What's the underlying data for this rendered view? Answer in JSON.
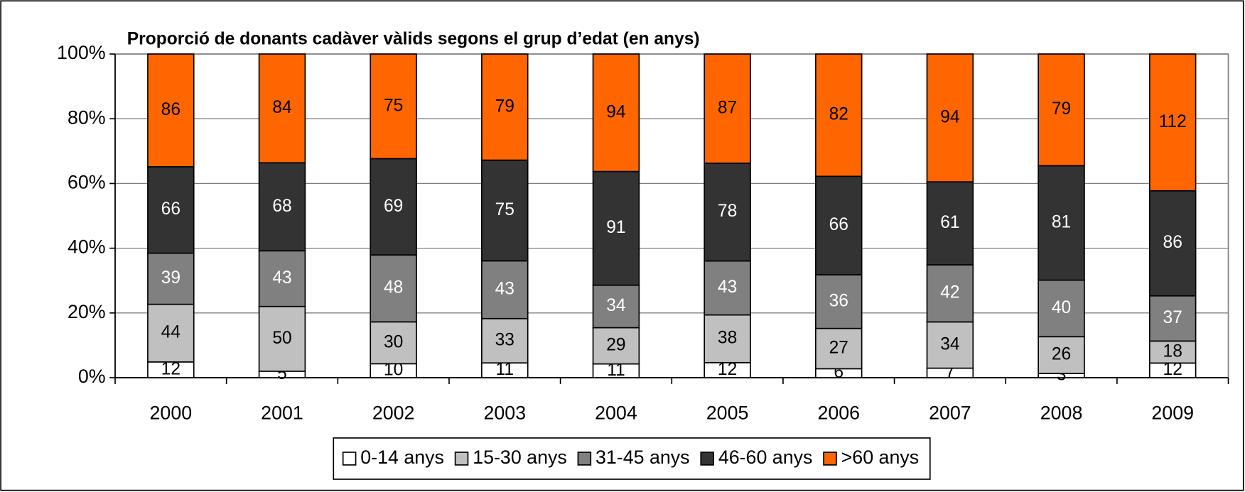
{
  "chart_data": {
    "type": "bar",
    "stacked": "percent",
    "title": "Proporció de donants cadàver vàlids segons el grup d’edat (en anys)",
    "categories": [
      "2000",
      "2001",
      "2002",
      "2003",
      "2004",
      "2005",
      "2006",
      "2007",
      "2008",
      "2009"
    ],
    "series": [
      {
        "name": "0-14 anys",
        "color": "#ffffff",
        "label_color": "#000000",
        "values": [
          12,
          5,
          10,
          11,
          11,
          12,
          6,
          7,
          3,
          12
        ]
      },
      {
        "name": "15-30 anys",
        "color": "#c0c0c0",
        "label_color": "#000000",
        "values": [
          44,
          50,
          30,
          33,
          29,
          38,
          27,
          34,
          26,
          18
        ]
      },
      {
        "name": "31-45 anys",
        "color": "#808080",
        "label_color": "#ffffff",
        "values": [
          39,
          43,
          48,
          43,
          34,
          43,
          36,
          42,
          40,
          37
        ]
      },
      {
        "name": "46-60 anys",
        "color": "#333333",
        "label_color": "#ffffff",
        "values": [
          66,
          68,
          69,
          75,
          91,
          78,
          66,
          61,
          81,
          86
        ]
      },
      {
        "name": ">60 anys",
        "color": "#ff6600",
        "label_color": "#000000",
        "values": [
          86,
          84,
          75,
          79,
          94,
          87,
          82,
          94,
          79,
          112
        ]
      }
    ],
    "ylim": [
      0,
      100
    ],
    "yticks": [
      {
        "value": 0,
        "label": "0%"
      },
      {
        "value": 20,
        "label": "20%"
      },
      {
        "value": 40,
        "label": "40%"
      },
      {
        "value": 60,
        "label": "60%"
      },
      {
        "value": 80,
        "label": "80%"
      },
      {
        "value": 100,
        "label": "100%"
      }
    ],
    "grid": true,
    "legend": "bottom"
  }
}
